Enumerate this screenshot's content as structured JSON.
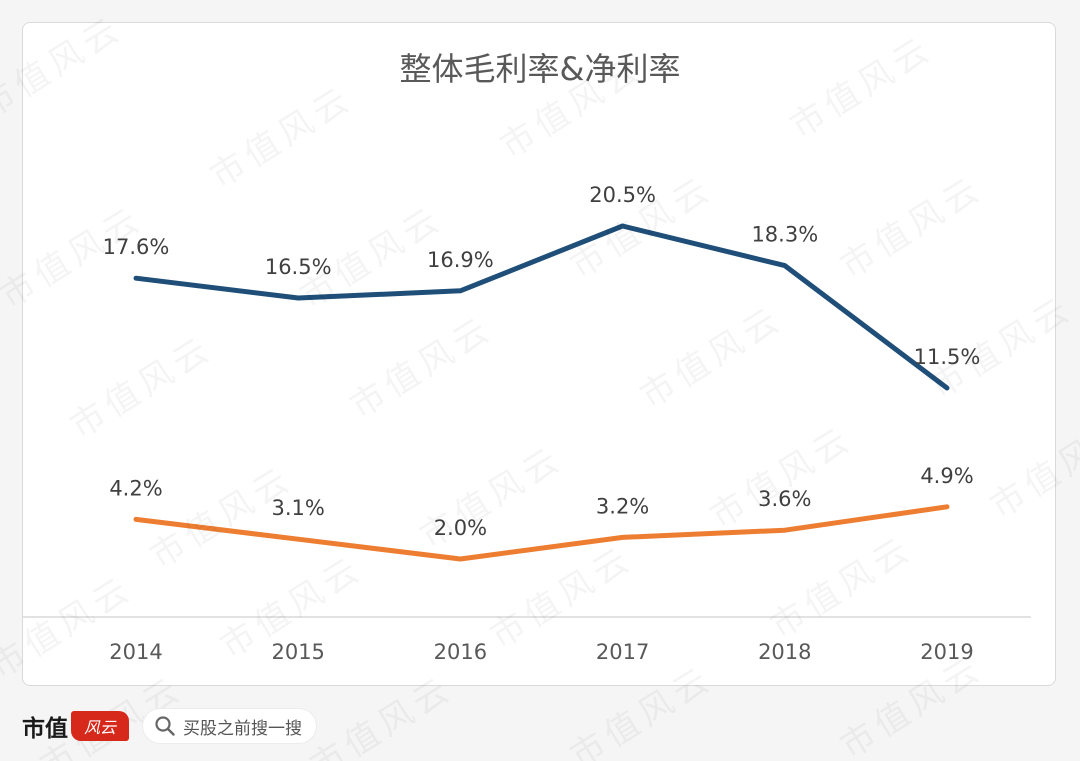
{
  "chart_data": {
    "type": "line",
    "title": "整体毛利率&净利率",
    "categories": [
      "2014",
      "2015",
      "2016",
      "2017",
      "2018",
      "2019"
    ],
    "series": [
      {
        "color": "#1f4e79",
        "values": [
          17.6,
          16.5,
          16.9,
          20.5,
          18.3,
          11.5
        ],
        "labels": [
          "17.6%",
          "16.5%",
          "16.9%",
          "20.5%",
          "18.3%",
          "11.5%"
        ]
      },
      {
        "color": "#ed7d31",
        "values": [
          4.2,
          3.1,
          2.0,
          3.2,
          3.6,
          4.9
        ],
        "labels": [
          "4.2%",
          "3.1%",
          "2.0%",
          "3.2%",
          "3.6%",
          "4.9%"
        ]
      }
    ],
    "ylim": [
      0,
      24
    ],
    "grid": false,
    "legend": "none"
  },
  "footer": {
    "brand": "市值",
    "brand_badge": "风云",
    "search_text": "买股之前搜一搜",
    "search_icon": "search-icon"
  },
  "watermark": {
    "text": "市值风云"
  }
}
